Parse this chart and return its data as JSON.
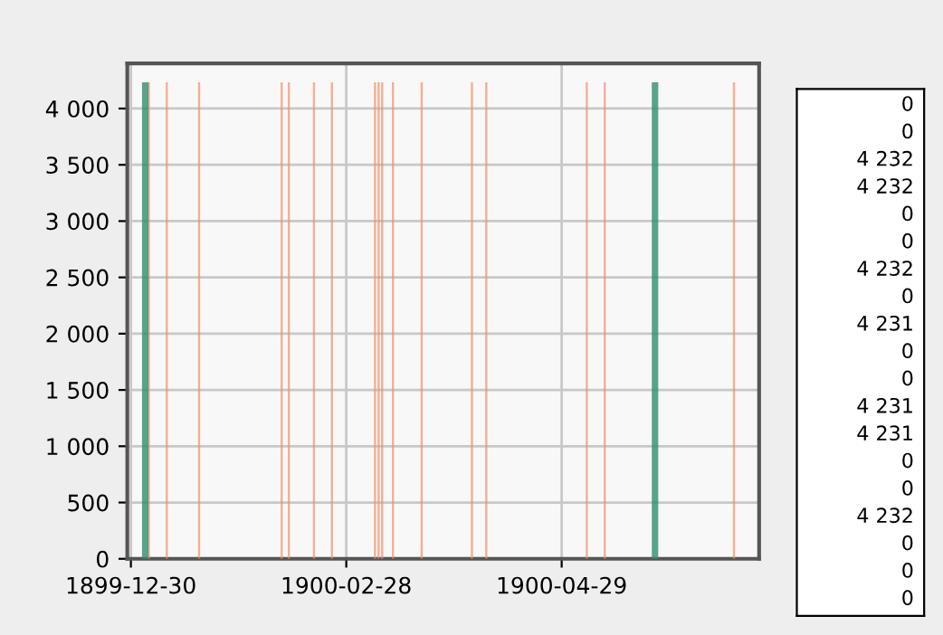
{
  "chart_data": {
    "type": "bar",
    "series": [
      {
        "color": "#f0906a",
        "x": [
          "1900-01-04",
          "1900-01-09",
          "1900-01-18",
          "1900-02-10",
          "1900-02-12",
          "1900-02-19",
          "1900-02-24",
          "1900-03-08",
          "1900-03-09",
          "1900-03-10",
          "1900-03-13",
          "1900-03-21",
          "1900-04-04",
          "1900-04-08",
          "1900-05-06",
          "1900-05-11",
          "1900-06-16"
        ],
        "values": [
          4232,
          4232,
          4232,
          4232,
          4232,
          4232,
          4232,
          4232,
          4232,
          4232,
          4232,
          4232,
          4232,
          4232,
          4232,
          4232,
          4232
        ]
      },
      {
        "color": "#2f8f6f",
        "x": [
          "1900-01-03",
          "1900-05-25"
        ],
        "values": [
          4232,
          4232
        ]
      }
    ],
    "xlim": [
      "1899-12-29",
      "1900-06-23"
    ],
    "xticks": [
      {
        "value": "1899-12-30",
        "label": "1899-12-30"
      },
      {
        "value": "1900-02-28",
        "label": "1900-02-28"
      },
      {
        "value": "1900-04-29",
        "label": "1900-04-29"
      }
    ],
    "ylim": [
      0,
      4400
    ],
    "yticks": [
      0,
      500,
      {
        "value": 1000,
        "label": "1 000"
      },
      {
        "value": 1500,
        "label": "1 500"
      },
      {
        "value": 2000,
        "label": "2 000"
      },
      {
        "value": 2500,
        "label": "2 500"
      },
      {
        "value": 3000,
        "label": "3 000"
      },
      {
        "value": 3500,
        "label": "3 500"
      },
      {
        "value": 4000,
        "label": "4 000"
      }
    ],
    "grid": true,
    "annotations": [
      "0",
      "0",
      "4 232",
      "4 232",
      "0",
      "0",
      "4 232",
      "0",
      "4 231",
      "0",
      "0",
      "4 231",
      "4 231",
      "0",
      "0",
      "4 232",
      "0",
      "0",
      "0"
    ]
  }
}
